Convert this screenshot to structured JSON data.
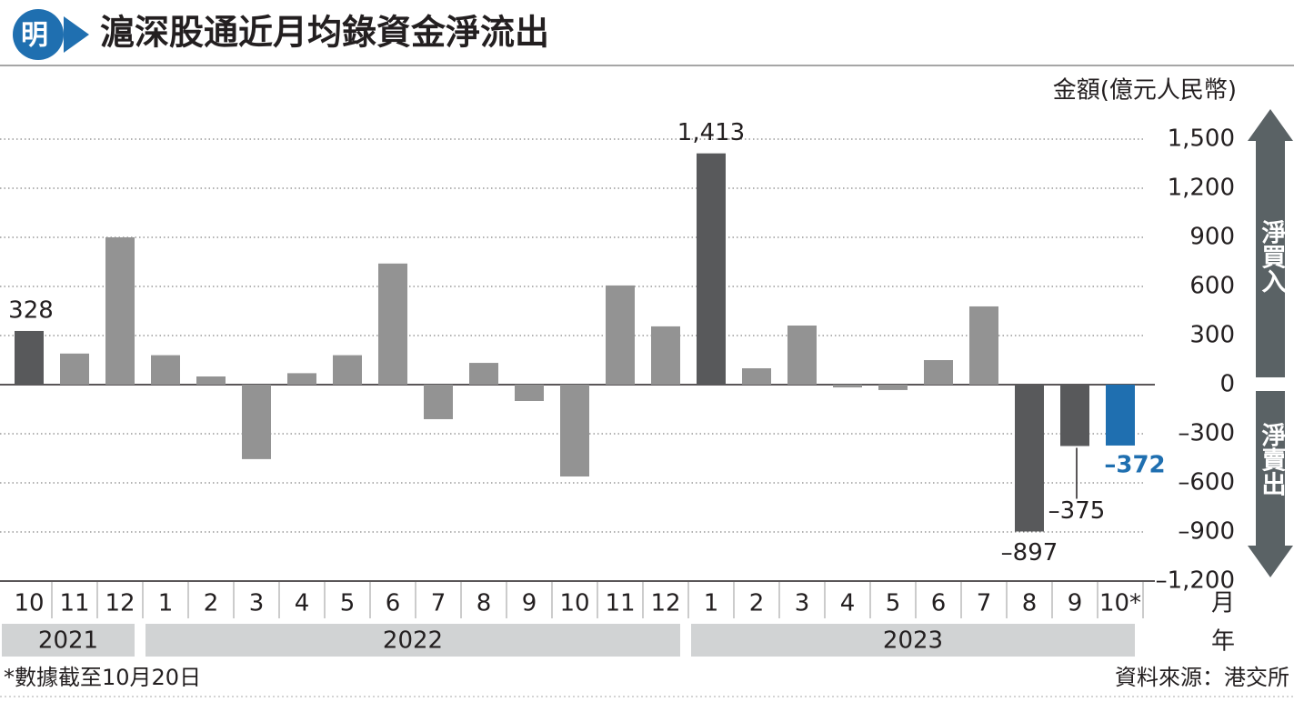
{
  "logo": "明",
  "chart_data": {
    "type": "bar",
    "title": "滬深股通近月均錄資金淨流出",
    "unit_label": "金額(億元人民幣)",
    "up_label": "淨買入",
    "down_label": "淨賣出",
    "x_label": "月",
    "year_label": "年",
    "categories": [
      "10",
      "11",
      "12",
      "1",
      "2",
      "3",
      "4",
      "5",
      "6",
      "7",
      "8",
      "9",
      "10",
      "11",
      "12",
      "1",
      "2",
      "3",
      "4",
      "5",
      "6",
      "7",
      "8",
      "9",
      "10*"
    ],
    "years": [
      "2021",
      "2021",
      "2021",
      "2022",
      "2022",
      "2022",
      "2022",
      "2022",
      "2022",
      "2022",
      "2022",
      "2022",
      "2022",
      "2022",
      "2022",
      "2023",
      "2023",
      "2023",
      "2023",
      "2023",
      "2023",
      "2023",
      "2023",
      "2023",
      "2023"
    ],
    "values": [
      328,
      190,
      900,
      180,
      50,
      -455,
      70,
      180,
      740,
      -211,
      133,
      -100,
      -561,
      606,
      356,
      1413,
      100,
      361,
      -17,
      -33,
      150,
      478,
      -897,
      -375,
      -372
    ],
    "value_labels": [
      "328",
      null,
      null,
      null,
      null,
      null,
      null,
      null,
      null,
      null,
      null,
      null,
      null,
      null,
      null,
      "1,413",
      null,
      null,
      null,
      null,
      null,
      null,
      "–897",
      "–375",
      "–372"
    ],
    "colors": [
      "#58595b",
      "#939393",
      "#939393",
      "#939393",
      "#939393",
      "#939393",
      "#939393",
      "#939393",
      "#939393",
      "#939393",
      "#939393",
      "#939393",
      "#939393",
      "#939393",
      "#939393",
      "#58595b",
      "#939393",
      "#939393",
      "#939393",
      "#939393",
      "#939393",
      "#939393",
      "#58595b",
      "#58595b",
      "#1f6fb0"
    ],
    "ylim": [
      -1200,
      1500
    ],
    "yticks": [
      {
        "value": 1500,
        "label": "1,500"
      },
      {
        "value": 1200,
        "label": "1,200"
      },
      900,
      600,
      300,
      0,
      {
        "value": -300,
        "label": "–300"
      },
      {
        "value": -600,
        "label": "–600"
      },
      {
        "value": -900,
        "label": "–900"
      },
      {
        "value": -1200,
        "label": "–1,200"
      }
    ],
    "grid": true,
    "footnote": "*數據截至10月20日",
    "source": "資料來源：港交所"
  }
}
